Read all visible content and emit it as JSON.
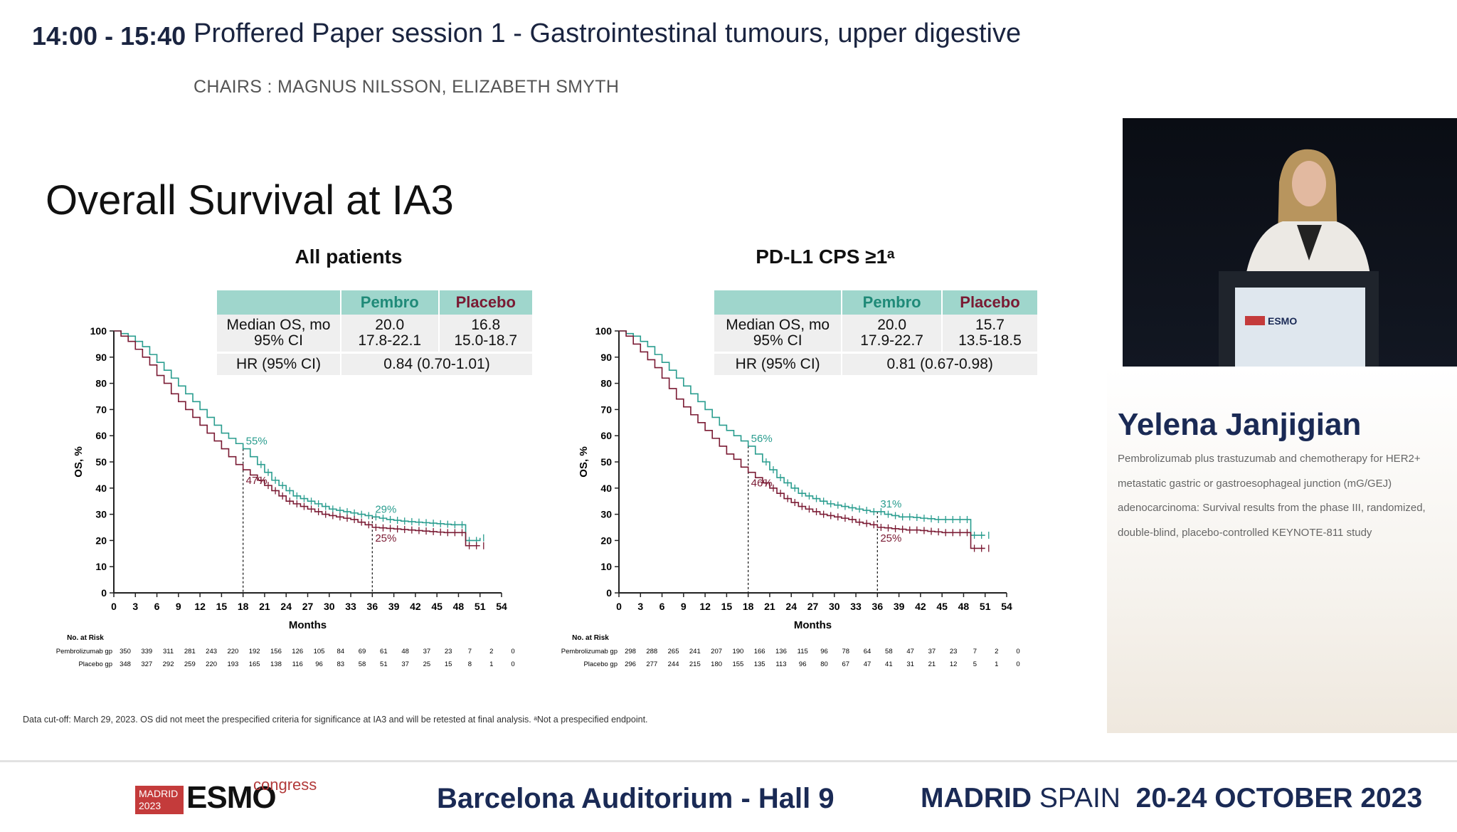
{
  "header": {
    "time": "14:00 - 15:40",
    "session": "Proffered Paper session 1 - Gastrointestinal tumours, upper digestive",
    "chairs": "CHAIRS : MAGNUS NILSSON, ELIZABETH SMYTH"
  },
  "slide": {
    "title": "Overall Survival at IA3",
    "footnote": "Data cut-off: March 29, 2023. OS did not meet the prespecified criteria for significance at IA3 and will be retested at final analysis. ᵃNot a prespecified endpoint."
  },
  "colors": {
    "pembro": "#2a9d8f",
    "placebo": "#7a1a33",
    "table_header": "#9fd6cc"
  },
  "panels": [
    {
      "title": "All patients",
      "table": {
        "col_pembro": "Pembro",
        "col_placebo": "Placebo",
        "row1_label": "Median OS, mo\n95% CI",
        "row1_pembro": "20.0\n17.8-22.1",
        "row1_placebo": "16.8\n15.0-18.7",
        "row2_label": "HR (95% CI)",
        "row2_value": "0.84 (0.70-1.01)"
      }
    },
    {
      "title": "PD-L1 CPS ≥1ᵃ",
      "table": {
        "col_pembro": "Pembro",
        "col_placebo": "Placebo",
        "row1_label": "Median OS, mo\n95% CI",
        "row1_pembro": "20.0\n17.9-22.7",
        "row1_placebo": "15.7\n13.5-18.5",
        "row2_label": "HR (95% CI)",
        "row2_value": "0.81 (0.67-0.98)"
      }
    }
  ],
  "chart_data": [
    {
      "type": "line",
      "title": "All patients",
      "xlabel": "Months",
      "ylabel": "OS, %",
      "xlim": [
        0,
        54
      ],
      "ylim": [
        0,
        100
      ],
      "x_ticks": [
        0,
        3,
        6,
        9,
        12,
        15,
        18,
        21,
        24,
        27,
        30,
        33,
        36,
        39,
        42,
        45,
        48,
        51,
        54
      ],
      "y_ticks": [
        0,
        10,
        20,
        30,
        40,
        50,
        60,
        70,
        80,
        90,
        100
      ],
      "series": [
        {
          "name": "Pembro",
          "color": "#2a9d8f",
          "x": [
            0,
            1,
            2,
            3,
            4,
            5,
            6,
            7,
            8,
            9,
            10,
            11,
            12,
            13,
            14,
            15,
            16,
            17,
            18,
            19,
            20,
            21,
            22,
            23,
            24,
            25,
            26,
            27,
            28,
            29,
            30,
            31,
            32,
            33,
            34,
            35,
            36,
            37,
            38,
            39,
            40,
            41,
            42,
            43,
            44,
            45,
            46,
            47,
            48,
            49,
            50,
            51
          ],
          "y": [
            100,
            99,
            98,
            96,
            94,
            91,
            88,
            85,
            82,
            79,
            76,
            73,
            70,
            67,
            64,
            61,
            59,
            57,
            55,
            52,
            49,
            46,
            43,
            41,
            39,
            37,
            36,
            35,
            34,
            33,
            32,
            31.5,
            31,
            30.5,
            30,
            29.5,
            29,
            28.5,
            28,
            27.7,
            27.4,
            27.2,
            27,
            26.8,
            26.6,
            26.4,
            26.2,
            26,
            26,
            20,
            20,
            21
          ]
        },
        {
          "name": "Placebo",
          "color": "#7a1a33",
          "x": [
            0,
            1,
            2,
            3,
            4,
            5,
            6,
            7,
            8,
            9,
            10,
            11,
            12,
            13,
            14,
            15,
            16,
            17,
            18,
            19,
            20,
            21,
            22,
            23,
            24,
            25,
            26,
            27,
            28,
            29,
            30,
            31,
            32,
            33,
            34,
            35,
            36,
            37,
            38,
            39,
            40,
            41,
            42,
            43,
            44,
            45,
            46,
            47,
            48,
            49,
            50,
            51
          ],
          "y": [
            100,
            98,
            96,
            93,
            90,
            87,
            83,
            80,
            76,
            73,
            70,
            67,
            64,
            61,
            58,
            55,
            52,
            49,
            47,
            45,
            43,
            41,
            39,
            37,
            35,
            34,
            33,
            32,
            31,
            30,
            29.5,
            29,
            28.5,
            28,
            27,
            26,
            25,
            24.8,
            24.6,
            24.4,
            24.2,
            24,
            23.8,
            23.6,
            23.4,
            23.2,
            23,
            23,
            23,
            18,
            18,
            18
          ]
        }
      ],
      "annotations": [
        {
          "x": 18,
          "y": 55,
          "text": "55%",
          "series": "Pembro"
        },
        {
          "x": 18,
          "y": 47,
          "text": "47%",
          "series": "Placebo"
        },
        {
          "x": 36,
          "y": 29,
          "text": "29%",
          "series": "Pembro"
        },
        {
          "x": 36,
          "y": 25,
          "text": "25%",
          "series": "Placebo"
        }
      ],
      "risk_table": {
        "header": "No. at Risk",
        "rows": [
          {
            "label": "Pembrolizumab gp",
            "values": [
              350,
              339,
              311,
              281,
              243,
              220,
              192,
              156,
              126,
              105,
              84,
              69,
              61,
              48,
              37,
              23,
              7,
              2,
              0
            ]
          },
          {
            "label": "Placebo gp",
            "values": [
              348,
              327,
              292,
              259,
              220,
              193,
              165,
              138,
              116,
              96,
              83,
              58,
              51,
              37,
              25,
              15,
              8,
              1,
              0
            ]
          }
        ]
      }
    },
    {
      "type": "line",
      "title": "PD-L1 CPS ≥1ᵃ",
      "xlabel": "Months",
      "ylabel": "OS, %",
      "xlim": [
        0,
        54
      ],
      "ylim": [
        0,
        100
      ],
      "x_ticks": [
        0,
        3,
        6,
        9,
        12,
        15,
        18,
        21,
        24,
        27,
        30,
        33,
        36,
        39,
        42,
        45,
        48,
        51,
        54
      ],
      "y_ticks": [
        0,
        10,
        20,
        30,
        40,
        50,
        60,
        70,
        80,
        90,
        100
      ],
      "series": [
        {
          "name": "Pembro",
          "color": "#2a9d8f",
          "x": [
            0,
            1,
            2,
            3,
            4,
            5,
            6,
            7,
            8,
            9,
            10,
            11,
            12,
            13,
            14,
            15,
            16,
            17,
            18,
            19,
            20,
            21,
            22,
            23,
            24,
            25,
            26,
            27,
            28,
            29,
            30,
            31,
            32,
            33,
            34,
            35,
            36,
            37,
            38,
            39,
            40,
            41,
            42,
            43,
            44,
            45,
            46,
            47,
            48,
            49,
            50,
            51
          ],
          "y": [
            100,
            99,
            98,
            96,
            94,
            91,
            88,
            85,
            82,
            79,
            76,
            73,
            70,
            67,
            64,
            62,
            60,
            58,
            56,
            53,
            50,
            47,
            44,
            42,
            40,
            38,
            37,
            36,
            35,
            34,
            33.5,
            33,
            32.5,
            32,
            31.5,
            31,
            31,
            30,
            29.5,
            29,
            29,
            28.8,
            28.5,
            28.3,
            28,
            28,
            28,
            28,
            28,
            22,
            22,
            22
          ]
        },
        {
          "name": "Placebo",
          "color": "#7a1a33",
          "x": [
            0,
            1,
            2,
            3,
            4,
            5,
            6,
            7,
            8,
            9,
            10,
            11,
            12,
            13,
            14,
            15,
            16,
            17,
            18,
            19,
            20,
            21,
            22,
            23,
            24,
            25,
            26,
            27,
            28,
            29,
            30,
            31,
            32,
            33,
            34,
            35,
            36,
            37,
            38,
            39,
            40,
            41,
            42,
            43,
            44,
            45,
            46,
            47,
            48,
            49,
            50,
            51
          ],
          "y": [
            100,
            98,
            95,
            92,
            89,
            86,
            82,
            78,
            74,
            71,
            68,
            65,
            62,
            59,
            56,
            53,
            51,
            48,
            46,
            44,
            42,
            40,
            38,
            36,
            34.5,
            33,
            32,
            31,
            30,
            29.5,
            29,
            28.5,
            28,
            27,
            26.5,
            26,
            25,
            24.8,
            24.5,
            24.3,
            24,
            24,
            23.8,
            23.5,
            23.3,
            23,
            23,
            23,
            23,
            17,
            17,
            17
          ]
        }
      ],
      "annotations": [
        {
          "x": 18,
          "y": 56,
          "text": "56%",
          "series": "Pembro"
        },
        {
          "x": 18,
          "y": 46,
          "text": "46%",
          "series": "Placebo"
        },
        {
          "x": 36,
          "y": 31,
          "text": "31%",
          "series": "Pembro"
        },
        {
          "x": 36,
          "y": 25,
          "text": "25%",
          "series": "Placebo"
        }
      ],
      "risk_table": {
        "header": "No. at Risk",
        "rows": [
          {
            "label": "Pembrolizumab gp",
            "values": [
              298,
              288,
              265,
              241,
              207,
              190,
              166,
              136,
              115,
              96,
              78,
              64,
              58,
              47,
              37,
              23,
              7,
              2,
              0
            ]
          },
          {
            "label": "Placebo gp",
            "values": [
              296,
              277,
              244,
              215,
              180,
              155,
              135,
              113,
              96,
              80,
              67,
              47,
              41,
              31,
              21,
              12,
              5,
              1,
              0
            ]
          }
        ]
      }
    }
  ],
  "speaker": {
    "name": "Yelena Janjigian",
    "talk": "Pembrolizumab plus trastuzumab and chemotherapy for HER2+ metastatic gastric or gastroesophageal junction (mG/GEJ) adenocarcinoma: Survival results from the phase III, randomized, double-blind, placebo-controlled KEYNOTE-811 study",
    "podium_logo": "ESMO"
  },
  "footer": {
    "logo_city": "MADRID 2023",
    "logo_brand": "ESMO",
    "logo_suffix": "congress",
    "venue": "Barcelona Auditorium - Hall 9",
    "city": "MADRID",
    "country": "SPAIN",
    "dates": "20-24 OCTOBER 2023"
  }
}
